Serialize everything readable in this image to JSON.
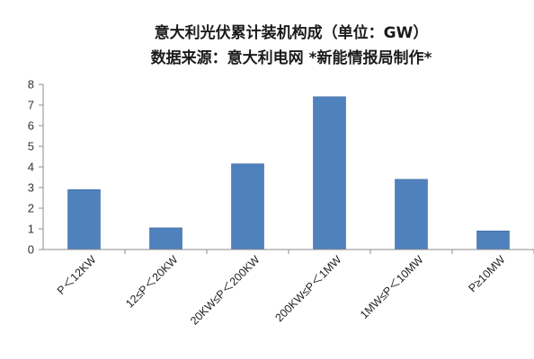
{
  "chart_data": {
    "type": "bar",
    "title": "意大利光伏累计装机构成（单位：GW）",
    "subtitle": "数据来源：意大利电网 *新能情报局制作*",
    "xlabel": "",
    "ylabel": "",
    "ylim": [
      0,
      8
    ],
    "yticks": [
      "0",
      "1",
      "2",
      "3",
      "4",
      "5",
      "6",
      "7",
      "8"
    ],
    "grid": false,
    "categories": [
      "P＜12KW",
      "12≤P＜20KW",
      "20KW≤P＜200KW",
      "200KW≤P＜1MW",
      "1MW≤P＜10MW",
      "P≥10MW"
    ],
    "series": [
      {
        "values": [
          2.9,
          1.05,
          4.15,
          7.4,
          3.4,
          0.9
        ],
        "color": "#4f81bd"
      }
    ]
  }
}
